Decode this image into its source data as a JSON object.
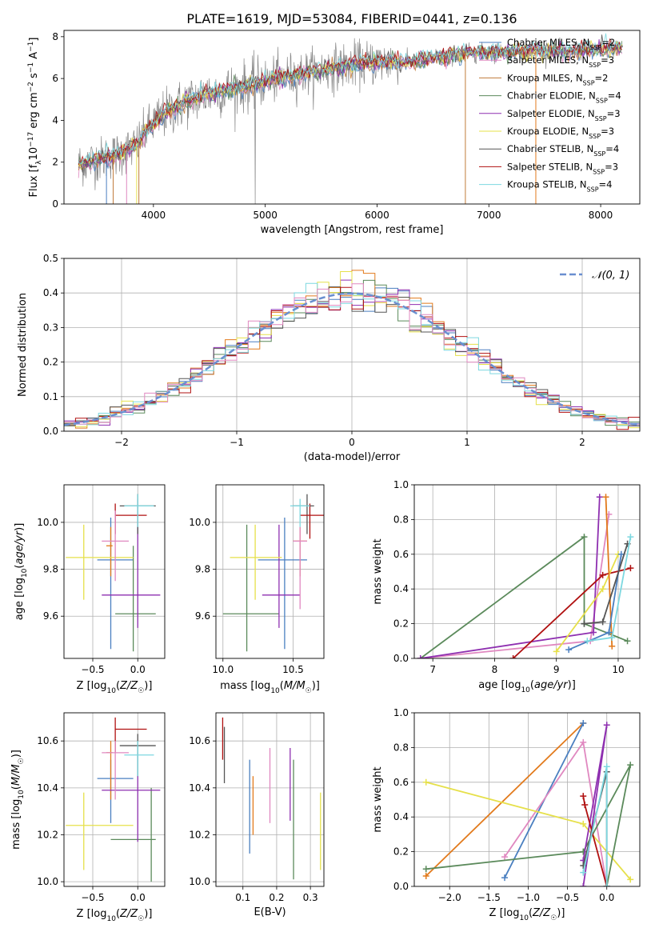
{
  "title": "PLATE=1619, MJD=53084, FIBERID=0441, z=0.136",
  "colors": {
    "Chabrier MILES": "#4a7fc0",
    "Salpeter MILES": "#e27a1c",
    "Kroupa MILES": "#c07a3a",
    "Chabrier ELODIE": "#5b8a5b",
    "Salpeter ELODIE": "#8e2fb0",
    "Kroupa ELODIE": "#e6e04a",
    "Chabrier STELIB": "#555555",
    "Salpeter STELIB": "#b01010",
    "Kroupa STELIB": "#7dd8e0",
    "pink": "#e088c0",
    "lightgreen": "#cce36a",
    "normal": "#6a8fd0",
    "data": "#888888"
  },
  "chart_data": [
    {
      "id": "spectrum",
      "type": "line",
      "xlabel": "wavelength [Angstrom, rest frame]",
      "ylabel": "Flux [f_λ 10^-17 erg cm^-2 s^-1 A^-1]",
      "xlim": [
        3200,
        8350
      ],
      "ylim": [
        0,
        8.3
      ],
      "xticks": [
        4000,
        5000,
        6000,
        7000,
        8000
      ],
      "yticks": [
        0,
        2,
        4,
        6,
        8
      ],
      "legend": {
        "placement": "top-right",
        "entries": [
          {
            "label": "Chabrier MILES, N",
            "sub": "SSP",
            "tail": "=2",
            "color_key": "Chabrier MILES"
          },
          {
            "label": "Salpeter MILES, N",
            "sub": "SSP",
            "tail": "=3",
            "color_key": "pink"
          },
          {
            "label": "Kroupa MILES, N",
            "sub": "SSP",
            "tail": "=2",
            "color_key": "Kroupa MILES"
          },
          {
            "label": "Chabrier ELODIE, N",
            "sub": "SSP",
            "tail": "=4",
            "color_key": "Chabrier ELODIE"
          },
          {
            "label": "Salpeter ELODIE, N",
            "sub": "SSP",
            "tail": "=3",
            "color_key": "Salpeter ELODIE"
          },
          {
            "label": "Kroupa ELODIE, N",
            "sub": "SSP",
            "tail": "=3",
            "color_key": "Kroupa ELODIE"
          },
          {
            "label": "Chabrier STELIB, N",
            "sub": "SSP",
            "tail": "=4",
            "color_key": "Chabrier STELIB"
          },
          {
            "label": "Salpeter STELIB, N",
            "sub": "SSP",
            "tail": "=3",
            "color_key": "Salpeter STELIB"
          },
          {
            "label": "Kroupa STELIB, N",
            "sub": "SSP",
            "tail": "=4",
            "color_key": "Kroupa STELIB"
          }
        ]
      },
      "continuum": [
        [
          3330,
          1.9
        ],
        [
          3500,
          2.1
        ],
        [
          3700,
          2.4
        ],
        [
          3850,
          2.8
        ],
        [
          3950,
          3.6
        ],
        [
          4100,
          4.3
        ],
        [
          4300,
          4.9
        ],
        [
          4500,
          5.3
        ],
        [
          4800,
          5.6
        ],
        [
          5100,
          6.0
        ],
        [
          5400,
          6.3
        ],
        [
          5700,
          6.6
        ],
        [
          6000,
          6.8
        ],
        [
          6300,
          6.8
        ],
        [
          6500,
          7.0
        ],
        [
          6800,
          7.2
        ],
        [
          7100,
          7.3
        ],
        [
          7400,
          7.3
        ],
        [
          7700,
          7.3
        ],
        [
          8000,
          7.4
        ],
        [
          8200,
          7.5
        ]
      ]
    },
    {
      "id": "residuals",
      "type": "line",
      "xlabel": "(data-model)/error",
      "ylabel": "Normed distribution",
      "xlim": [
        -2.5,
        2.5
      ],
      "ylim": [
        0,
        0.5
      ],
      "xticks": [
        -2,
        -1,
        0,
        1,
        2
      ],
      "xticklabels": [
        "−2",
        "−1",
        "0",
        "1",
        "2"
      ],
      "yticks": [
        0.0,
        0.1,
        0.2,
        0.3,
        0.4,
        0.5
      ],
      "yticklabels": [
        "0.0",
        "0.1",
        "0.2",
        "0.3",
        "0.4",
        "0.5"
      ],
      "legend": {
        "placement": "top-right",
        "label": "𝒩(0, 1)"
      },
      "grid": true
    },
    {
      "id": "age-vs-Z",
      "type": "scatter",
      "xlabel": "Z [log10(Z/Z☉)]",
      "ylabel": "age [log10(age/yr)]",
      "xlim": [
        -0.82,
        0.3
      ],
      "ylim": [
        9.42,
        10.16
      ],
      "xticks": [
        -0.5,
        0.0
      ],
      "xticklabels": [
        "−0.5",
        "0.0"
      ],
      "yticks": [
        9.6,
        9.8,
        10.0
      ],
      "yticklabels": [
        "9.6",
        "9.8",
        "10.0"
      ],
      "points": [
        {
          "c": "Chabrier MILES",
          "x": -0.3,
          "xe": [
            -0.45,
            -0.05
          ],
          "y": 9.84,
          "ye": [
            9.46,
            10.02
          ]
        },
        {
          "c": "Salpeter MILES",
          "x": -0.3,
          "xe": [
            -0.35,
            -0.28
          ],
          "y": 9.9,
          "ye": [
            9.77,
            9.98
          ]
        },
        {
          "c": "Chabrier ELODIE",
          "x": -0.05,
          "xe": [
            -0.25,
            0.2
          ],
          "y": 9.61,
          "ye": [
            9.45,
            9.9
          ]
        },
        {
          "c": "Salpeter ELODIE",
          "x": 0.0,
          "xe": [
            -0.4,
            0.25
          ],
          "y": 9.69,
          "ye": [
            9.55,
            10.1
          ]
        },
        {
          "c": "Kroupa ELODIE",
          "x": -0.6,
          "xe": [
            -0.8,
            -0.05
          ],
          "y": 9.85,
          "ye": [
            9.67,
            9.99
          ]
        },
        {
          "c": "Chabrier STELIB",
          "x": 0.0,
          "xe": [
            -0.2,
            0.2
          ],
          "y": 10.07,
          "ye": [
            9.95,
            10.12
          ]
        },
        {
          "c": "Salpeter STELIB",
          "x": -0.25,
          "xe": [
            -0.25,
            0.1
          ],
          "y": 10.03,
          "ye": [
            9.95,
            10.08
          ]
        },
        {
          "c": "Kroupa STELIB",
          "x": 0.0,
          "xe": [
            -0.15,
            0.18
          ],
          "y": 10.07,
          "ye": [
            9.98,
            10.12
          ]
        },
        {
          "c": "pink",
          "x": -0.25,
          "xe": [
            -0.4,
            -0.1
          ],
          "y": 9.92,
          "ye": [
            9.75,
            10.05
          ]
        }
      ]
    },
    {
      "id": "age-vs-mass",
      "type": "scatter",
      "xlabel": "mass [log10(M/M☉)]",
      "ylabel": "",
      "xlim": [
        9.95,
        10.72
      ],
      "ylim": [
        9.42,
        10.16
      ],
      "xticks": [
        10.0,
        10.5
      ],
      "xticklabels": [
        "10.0",
        "10.5"
      ],
      "yticks": [
        9.6,
        9.8,
        10.0
      ],
      "yticklabels": [
        "9.6",
        "9.8",
        "10.0"
      ],
      "points": [
        {
          "c": "Chabrier MILES",
          "x": 10.44,
          "xe": [
            10.25,
            10.6
          ],
          "y": 9.84,
          "ye": [
            9.46,
            10.02
          ]
        },
        {
          "c": "Salpeter MILES",
          "x": 10.55,
          "xe": [
            10.5,
            10.6
          ],
          "y": 9.92,
          "ye": [
            9.77,
            9.98
          ]
        },
        {
          "c": "Chabrier ELODIE",
          "x": 10.17,
          "xe": [
            10.0,
            10.4
          ],
          "y": 9.61,
          "ye": [
            9.45,
            9.99
          ]
        },
        {
          "c": "Salpeter ELODIE",
          "x": 10.4,
          "xe": [
            10.28,
            10.55
          ],
          "y": 9.69,
          "ye": [
            9.55,
            9.99
          ]
        },
        {
          "c": "Kroupa ELODIE",
          "x": 10.23,
          "xe": [
            10.05,
            10.42
          ],
          "y": 9.85,
          "ye": [
            9.67,
            9.99
          ]
        },
        {
          "c": "Chabrier STELIB",
          "x": 10.6,
          "xe": [
            10.5,
            10.65
          ],
          "y": 10.07,
          "ye": [
            9.95,
            10.12
          ]
        },
        {
          "c": "Salpeter STELIB",
          "x": 10.62,
          "xe": [
            10.55,
            10.72
          ],
          "y": 10.03,
          "ye": [
            9.93,
            10.08
          ]
        },
        {
          "c": "Kroupa STELIB",
          "x": 10.55,
          "xe": [
            10.48,
            10.62
          ],
          "y": 10.07,
          "ye": [
            9.98,
            10.1
          ]
        },
        {
          "c": "pink",
          "x": 10.55,
          "xe": [
            10.5,
            10.6
          ],
          "y": 9.92,
          "ye": [
            9.63,
            9.98
          ]
        }
      ]
    },
    {
      "id": "mass-vs-Z",
      "type": "scatter",
      "xlabel": "Z [log10(Z/Z☉)]",
      "ylabel": "mass [log10(M/M☉)]",
      "xlim": [
        -0.82,
        0.3
      ],
      "ylim": [
        9.98,
        10.72
      ],
      "xticks": [
        -0.5,
        0.0
      ],
      "xticklabels": [
        "−0.5",
        "0.0"
      ],
      "yticks": [
        10.0,
        10.2,
        10.4,
        10.6
      ],
      "yticklabels": [
        "10.0",
        "10.2",
        "10.4",
        "10.6"
      ],
      "points": [
        {
          "c": "Chabrier MILES",
          "x": -0.3,
          "xe": [
            -0.45,
            -0.05
          ],
          "y": 10.44,
          "ye": [
            10.25,
            10.52
          ]
        },
        {
          "c": "Salpeter MILES",
          "x": -0.3,
          "xe": [
            -0.35,
            -0.28
          ],
          "y": 10.55,
          "ye": [
            10.35,
            10.6
          ]
        },
        {
          "c": "Chabrier ELODIE",
          "x": 0.15,
          "xe": [
            -0.3,
            0.2
          ],
          "y": 10.18,
          "ye": [
            10.0,
            10.4
          ]
        },
        {
          "c": "Salpeter ELODIE",
          "x": 0.0,
          "xe": [
            -0.4,
            0.25
          ],
          "y": 10.39,
          "ye": [
            10.17,
            10.55
          ]
        },
        {
          "c": "Kroupa ELODIE",
          "x": -0.6,
          "xe": [
            -0.8,
            -0.05
          ],
          "y": 10.24,
          "ye": [
            10.05,
            10.38
          ]
        },
        {
          "c": "Chabrier STELIB",
          "x": 0.0,
          "xe": [
            -0.2,
            0.2
          ],
          "y": 10.58,
          "ye": [
            10.45,
            10.63
          ]
        },
        {
          "c": "Salpeter STELIB",
          "x": -0.25,
          "xe": [
            -0.25,
            0.1
          ],
          "y": 10.65,
          "ye": [
            10.55,
            10.7
          ]
        },
        {
          "c": "Kroupa STELIB",
          "x": 0.0,
          "xe": [
            -0.15,
            0.18
          ],
          "y": 10.54,
          "ye": [
            10.45,
            10.6
          ]
        },
        {
          "c": "pink",
          "x": -0.25,
          "xe": [
            -0.4,
            -0.1
          ],
          "y": 10.55,
          "ye": [
            10.35,
            10.6
          ]
        }
      ]
    },
    {
      "id": "mass-vs-EBV",
      "type": "scatter",
      "xlabel": "E(B-V)",
      "ylabel": "",
      "xlim": [
        0.02,
        0.34
      ],
      "ylim": [
        9.98,
        10.72
      ],
      "xticks": [
        0.1,
        0.2,
        0.3
      ],
      "xticklabels": [
        "0.1",
        "0.2",
        "0.3"
      ],
      "yticks": [
        10.0,
        10.2,
        10.4,
        10.6
      ],
      "yticklabels": [
        "10.0",
        "10.2",
        "10.4",
        "10.6"
      ],
      "points": [
        {
          "c": "Chabrier MILES",
          "x": 0.12,
          "y": 10.3,
          "ye": [
            10.12,
            10.52
          ]
        },
        {
          "c": "Salpeter MILES",
          "x": 0.13,
          "y": 10.3,
          "ye": [
            10.2,
            10.45
          ]
        },
        {
          "c": "Salpeter STELIB",
          "x": 0.04,
          "y": 10.6,
          "ye": [
            10.52,
            10.7
          ]
        },
        {
          "c": "Chabrier STELIB",
          "x": 0.045,
          "y": 10.55,
          "ye": [
            10.42,
            10.66
          ]
        },
        {
          "c": "pink",
          "x": 0.18,
          "y": 10.4,
          "ye": [
            10.25,
            10.57
          ]
        },
        {
          "c": "Salpeter ELODIE",
          "x": 0.24,
          "y": 10.4,
          "ye": [
            10.26,
            10.57
          ]
        },
        {
          "c": "Chabrier ELODIE",
          "x": 0.25,
          "y": 10.3,
          "ye": [
            10.01,
            10.52
          ]
        },
        {
          "c": "Kroupa ELODIE",
          "x": 0.33,
          "y": 10.22,
          "ye": [
            10.05,
            10.38
          ]
        }
      ]
    },
    {
      "id": "weight-vs-age",
      "type": "line",
      "xlabel": "age [log10(age/yr)]",
      "ylabel": "mass weight",
      "xlim": [
        6.7,
        10.35
      ],
      "ylim": [
        0,
        1.0
      ],
      "xticks": [
        7,
        8,
        9,
        10
      ],
      "yticks": [
        0.0,
        0.2,
        0.4,
        0.6,
        0.8,
        1.0
      ],
      "yticklabels": [
        "0.0",
        "0.2",
        "0.4",
        "0.6",
        "0.8",
        "1.0"
      ],
      "series": [
        {
          "c": "Chabrier ELODIE",
          "x": [
            6.8,
            9.45,
            9.45,
            10.15
          ],
          "y": [
            0.0,
            0.7,
            0.2,
            0.1
          ]
        },
        {
          "c": "pink",
          "x": [
            6.8,
            9.55,
            9.85
          ],
          "y": [
            0.0,
            0.1,
            0.83
          ]
        },
        {
          "c": "Salpeter ELODIE",
          "x": [
            6.8,
            9.6,
            9.7
          ],
          "y": [
            0.0,
            0.15,
            0.93
          ]
        },
        {
          "c": "Salpeter STELIB",
          "x": [
            8.3,
            9.75,
            10.2
          ],
          "y": [
            0.0,
            0.48,
            0.52
          ]
        },
        {
          "c": "Kroupa ELODIE",
          "x": [
            9.0,
            9.75,
            10.0
          ],
          "y": [
            0.04,
            0.4,
            0.6
          ]
        },
        {
          "c": "Salpeter MILES",
          "x": [
            9.8,
            9.9
          ],
          "y": [
            0.93,
            0.07
          ]
        },
        {
          "c": "Chabrier MILES",
          "x": [
            9.2,
            9.85,
            10.05
          ],
          "y": [
            0.05,
            0.15,
            0.6
          ]
        },
        {
          "c": "Chabrier STELIB",
          "x": [
            9.45,
            9.75,
            10.15
          ],
          "y": [
            0.2,
            0.21,
            0.66
          ]
        },
        {
          "c": "Kroupa STELIB",
          "x": [
            9.5,
            9.9,
            10.2
          ],
          "y": [
            0.1,
            0.12,
            0.7
          ]
        }
      ]
    },
    {
      "id": "weight-vs-Z",
      "type": "line",
      "xlabel": "Z [log10(Z/Z☉)]",
      "ylabel": "mass weight",
      "xlim": [
        -2.45,
        0.42
      ],
      "ylim": [
        0,
        1.0
      ],
      "xticks": [
        -2.0,
        -1.5,
        -1.0,
        -0.5,
        0.0
      ],
      "xticklabels": [
        "−2.0",
        "−1.5",
        "−1.0",
        "−0.5",
        "0.0"
      ],
      "yticks": [
        0.0,
        0.2,
        0.4,
        0.6,
        0.8,
        1.0
      ],
      "yticklabels": [
        "0.0",
        "0.2",
        "0.4",
        "0.6",
        "0.8",
        "1.0"
      ],
      "series": [
        {
          "c": "Salpeter MILES",
          "x": [
            -2.3,
            -0.3
          ],
          "y": [
            0.06,
            0.94
          ]
        },
        {
          "c": "Chabrier MILES",
          "x": [
            -1.3,
            -0.3
          ],
          "y": [
            0.05,
            0.94
          ]
        },
        {
          "c": "pink",
          "x": [
            -1.3,
            -0.3,
            0.0
          ],
          "y": [
            0.17,
            0.83,
            0.0
          ]
        },
        {
          "c": "Kroupa ELODIE",
          "x": [
            -2.3,
            -0.3,
            0.3
          ],
          "y": [
            0.6,
            0.36,
            0.04
          ]
        },
        {
          "c": "Chabrier ELODIE",
          "x": [
            -2.3,
            -0.3,
            0.3,
            0.0
          ],
          "y": [
            0.1,
            0.2,
            0.7,
            0.0
          ]
        },
        {
          "c": "Salpeter ELODIE",
          "x": [
            -0.3,
            0.0,
            -0.3
          ],
          "y": [
            0.15,
            0.93,
            0.0
          ]
        },
        {
          "c": "Salpeter STELIB",
          "x": [
            -0.3,
            -0.28,
            0.0
          ],
          "y": [
            0.52,
            0.47,
            0.0
          ]
        },
        {
          "c": "Chabrier STELIB",
          "x": [
            -0.3,
            0.0,
            0.0
          ],
          "y": [
            0.12,
            0.66,
            0.0
          ]
        },
        {
          "c": "Kroupa STELIB",
          "x": [
            -0.3,
            0.0,
            0.0
          ],
          "y": [
            0.08,
            0.69,
            0.0
          ]
        }
      ]
    }
  ]
}
